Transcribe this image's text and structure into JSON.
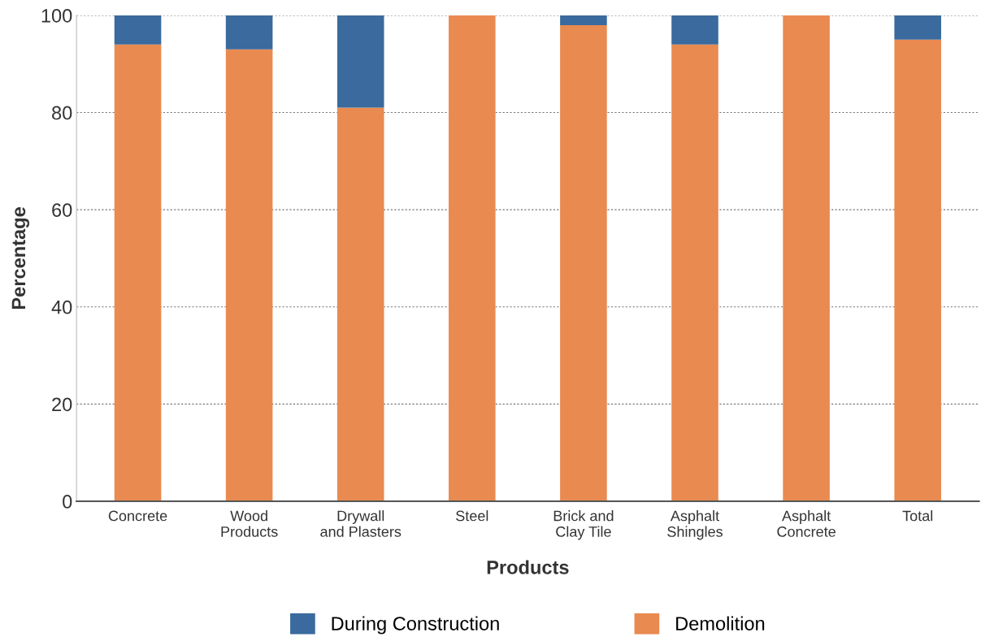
{
  "chart_data": {
    "type": "bar",
    "stacked": true,
    "xlabel": "Products",
    "ylabel": "Percentage",
    "categories": [
      "Concrete",
      "Wood\nProducts",
      "Drywall\nand Plasters",
      "Steel",
      "Brick and\nClay Tile",
      "Asphalt\nShingles",
      "Asphalt\nConcrete",
      "Total"
    ],
    "series": [
      {
        "name": "Demolition",
        "color": "#e98a50",
        "values": [
          94,
          93,
          81,
          100,
          98,
          94,
          100,
          95
        ]
      },
      {
        "name": "During Construction",
        "color": "#3a6a9e",
        "values": [
          6,
          7,
          19,
          0,
          2,
          6,
          0,
          5
        ]
      }
    ],
    "ylim": [
      0,
      100
    ],
    "yticks": [
      0,
      20,
      40,
      60,
      80,
      100
    ],
    "grid": "y",
    "legend": "bottom"
  }
}
